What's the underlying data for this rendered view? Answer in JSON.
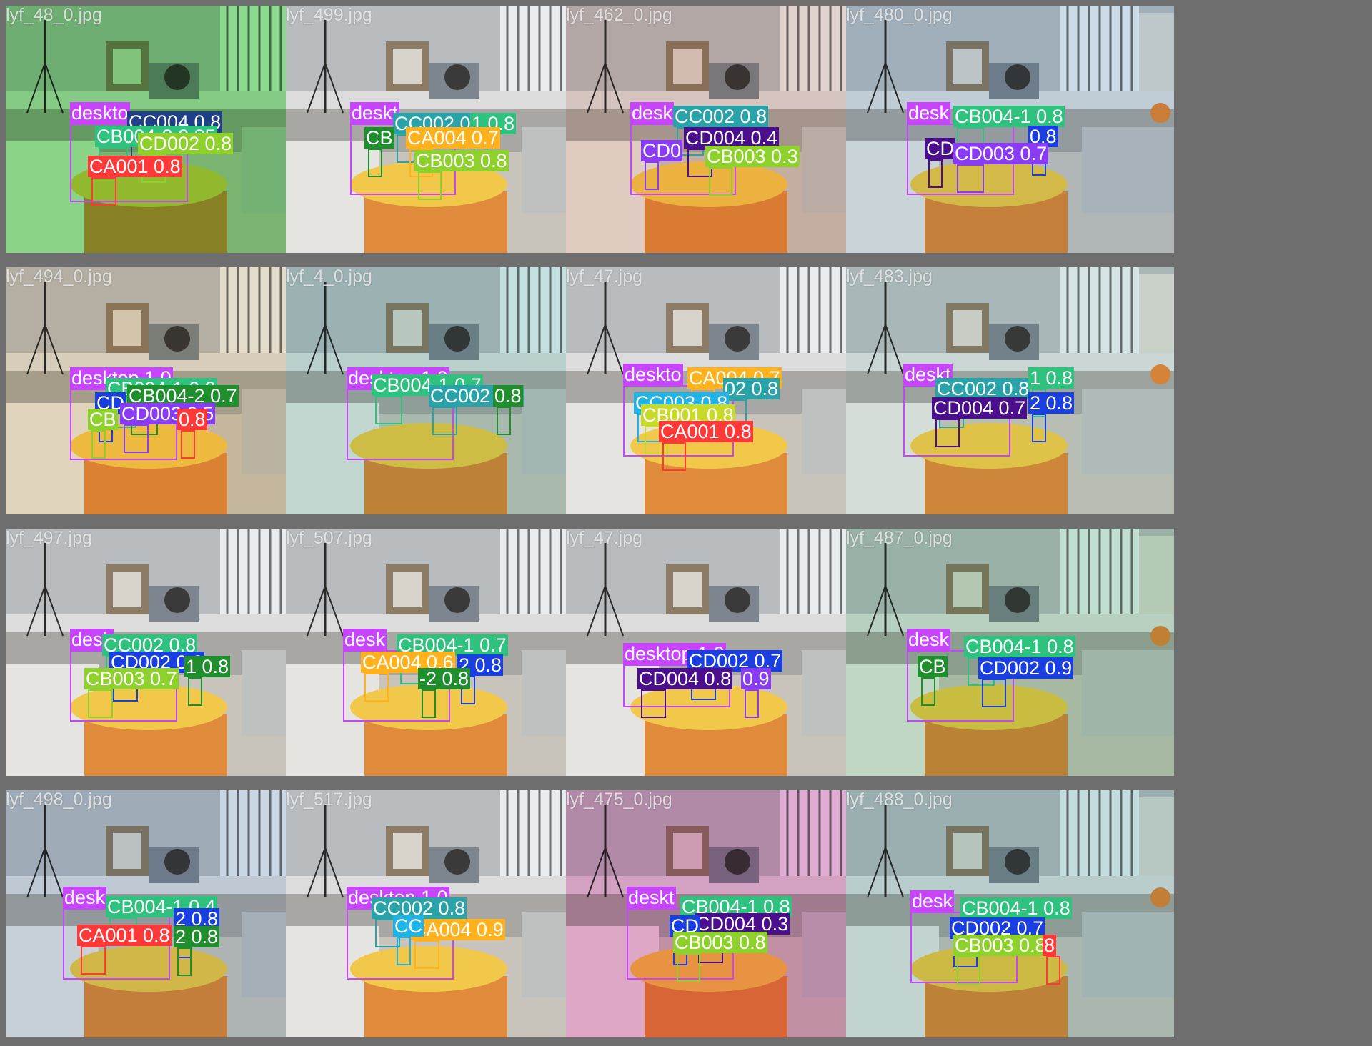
{
  "mosaic": {
    "tiles": [
      {
        "filename": "lyf_48_0.jpg",
        "tint": "#1fd41f",
        "detections": [
          {
            "label": "deskto",
            "color": "#c845ff"
          },
          {
            "label": "CC004 0.8",
            "color": "#1f3f86"
          },
          {
            "label": "CB004-2 0.85",
            "color": "#2ec27e"
          },
          {
            "label": "CD002 0.8",
            "color": "#8fd12c"
          },
          {
            "label": "CA001 0.8",
            "color": "#ff3838"
          }
        ]
      },
      {
        "filename": "lyf_499.jpg",
        "tint": "#ffffff",
        "detections": [
          {
            "label": "deskt",
            "color": "#c845ff"
          },
          {
            "label": "CC002 0.8",
            "color": "#2aa3a8"
          },
          {
            "label": "1 0.8",
            "color": "#2ec27e"
          },
          {
            "label": "CB",
            "color": "#1f8f2e"
          },
          {
            "label": "CA004 0.7",
            "color": "#ffb21d"
          },
          {
            "label": "CB003 0.8",
            "color": "#8fd12c"
          }
        ]
      },
      {
        "filename": "lyf_462_0.jpg",
        "tint": "#f2c1b0",
        "detections": [
          {
            "label": "desk",
            "color": "#c845ff"
          },
          {
            "label": "CC002 0.8",
            "color": "#2aa3a8"
          },
          {
            "label": "CD004 0.4",
            "color": "#4b0e8c"
          },
          {
            "label": "CD0",
            "color": "#8a3cf5"
          },
          {
            "label": "CB003 0.3",
            "color": "#8fd12c"
          }
        ]
      },
      {
        "filename": "lyf_480_0.jpg",
        "tint": "#b7d6f0",
        "detections": [
          {
            "label": "desk",
            "color": "#c845ff"
          },
          {
            "label": "CB004-1 0.8",
            "color": "#2ec27e"
          },
          {
            "label": "0.8",
            "color": "#1a3fe0"
          },
          {
            "label": "CD",
            "color": "#4b0e8c"
          },
          {
            "label": "CD003 0.7",
            "color": "#8a3cf5"
          }
        ]
      },
      {
        "filename": "lyf_494_0.jpg",
        "tint": "#f3d9a8",
        "detections": [
          {
            "label": "desktop 1.0",
            "color": "#c845ff"
          },
          {
            "label": "CB004-1 0.8",
            "color": "#2ec27e"
          },
          {
            "label": "CB004-2 0.7",
            "color": "#1f8f2e"
          },
          {
            "label": "CD",
            "color": "#1a3fe0"
          },
          {
            "label": "CD003 0.5",
            "color": "#8a3cf5"
          },
          {
            "label": "CB",
            "color": "#8fd12c"
          },
          {
            "label": "0.8",
            "color": "#ff3838"
          }
        ]
      },
      {
        "filename": "lyf_4_0.jpg",
        "tint": "#a9e0d8",
        "detections": [
          {
            "label": "desktop 1.0",
            "color": "#c845ff"
          },
          {
            "label": "CB004-1 0.7",
            "color": "#2ec27e"
          },
          {
            "label": "CC002 0.8",
            "color": "#2aa3a8"
          },
          {
            "label": "0.8",
            "color": "#1f8f2e"
          }
        ]
      },
      {
        "filename": "lyf_47.jpg",
        "tint": "#ffffff",
        "detections": [
          {
            "label": "deskto",
            "color": "#c845ff"
          },
          {
            "label": "CA004 0.7",
            "color": "#ffb21d"
          },
          {
            "label": "02 0.8",
            "color": "#2aa3a8"
          },
          {
            "label": "CC003 0.8",
            "color": "#1fb3e6"
          },
          {
            "label": "CB001 0.8",
            "color": "#c7d929"
          },
          {
            "label": "CA001 0.8",
            "color": "#ff3838"
          }
        ]
      },
      {
        "filename": "lyf_483.jpg",
        "tint": "#d2f0ea",
        "detections": [
          {
            "label": "deskt",
            "color": "#c845ff"
          },
          {
            "label": "CC002 0.8",
            "color": "#2aa3a8"
          },
          {
            "label": "1 0.8",
            "color": "#2ec27e"
          },
          {
            "label": "2 0.8",
            "color": "#1a3fe0"
          },
          {
            "label": "CD004 0.7",
            "color": "#4b0e8c"
          }
        ]
      },
      {
        "filename": "lyf_497.jpg",
        "tint": "#ffffff",
        "detections": [
          {
            "label": "desk",
            "color": "#c845ff"
          },
          {
            "label": "CC002 0.8",
            "color": "#2ec27e"
          },
          {
            "label": "CD002 0.3",
            "color": "#1a3fe0"
          },
          {
            "label": "1 0.8",
            "color": "#1f8f2e"
          },
          {
            "label": "CB003 0.7",
            "color": "#8fd12c"
          }
        ]
      },
      {
        "filename": "lyf_507.jpg",
        "tint": "#ffffff",
        "detections": [
          {
            "label": "desk",
            "color": "#c845ff"
          },
          {
            "label": "CB004-1 0.7",
            "color": "#2ec27e"
          },
          {
            "label": "CA004 0.6",
            "color": "#ffb21d"
          },
          {
            "label": "2 0.8",
            "color": "#1a3fe0"
          },
          {
            "label": "-2 0.8",
            "color": "#1f8f2e"
          }
        ]
      },
      {
        "filename": "lyf_47.jpg",
        "tint": "#ffffff",
        "detections": [
          {
            "label": "desktop 1.0",
            "color": "#c845ff"
          },
          {
            "label": "CD002 0.7",
            "color": "#1a3fe0"
          },
          {
            "label": "CD004 0.8",
            "color": "#4b0e8c"
          },
          {
            "label": "0.9",
            "color": "#8a3cf5"
          }
        ]
      },
      {
        "filename": "lyf_487_0.jpg",
        "tint": "#9fe0b6",
        "detections": [
          {
            "label": "desk",
            "color": "#c845ff"
          },
          {
            "label": "CB004-1 0.8",
            "color": "#2ec27e"
          },
          {
            "label": "CB",
            "color": "#1f8f2e"
          },
          {
            "label": "CD002 0.9",
            "color": "#1a3fe0"
          }
        ]
      },
      {
        "filename": "lyf_498_0.jpg",
        "tint": "#b3cfe8",
        "detections": [
          {
            "label": "desk",
            "color": "#c845ff"
          },
          {
            "label": "CB004-1 0.4",
            "color": "#2ec27e"
          },
          {
            "label": "2 0.8",
            "color": "#1a3fe0"
          },
          {
            "label": "CA001 0.8",
            "color": "#ff3838"
          },
          {
            "label": "2 0.8",
            "color": "#1f8f2e"
          }
        ]
      },
      {
        "filename": "lyf_517.jpg",
        "tint": "#ffffff",
        "detections": [
          {
            "label": "desktop 1.0",
            "color": "#c845ff"
          },
          {
            "label": "CC002 0.8",
            "color": "#2aa3a8"
          },
          {
            "label": "CA004 0.9",
            "color": "#ffb21d"
          },
          {
            "label": "CC",
            "color": "#1fb3e6"
          }
        ]
      },
      {
        "filename": "lyf_475_0.jpg",
        "tint": "#e868bc",
        "detections": [
          {
            "label": "deskt",
            "color": "#c845ff"
          },
          {
            "label": "CB004-1 0.8",
            "color": "#2ec27e"
          },
          {
            "label": "CD004 0.3",
            "color": "#4b0e8c"
          },
          {
            "label": "CD",
            "color": "#1a3fe0"
          },
          {
            "label": "CB003 0.8",
            "color": "#8fd12c"
          }
        ]
      },
      {
        "filename": "lyf_488_0.jpg",
        "tint": "#a6d9d6",
        "detections": [
          {
            "label": "desk",
            "color": "#c845ff"
          },
          {
            "label": "CB004-1 0.8",
            "color": "#2ec27e"
          },
          {
            "label": "CD002 0.7",
            "color": "#1a3fe0"
          },
          {
            "label": "CB003 0.8",
            "color": "#8fd12c"
          },
          {
            "label": "8",
            "color": "#ff3838"
          }
        ]
      }
    ]
  }
}
